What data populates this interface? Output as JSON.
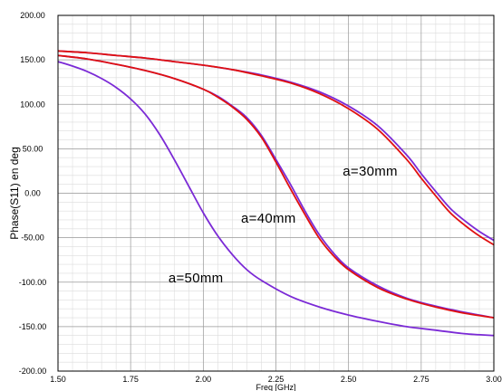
{
  "chart_data": {
    "type": "line",
    "title": "",
    "xlabel": "Freq [GHz]",
    "ylabel": "Phase(S11) en deg",
    "xlim": [
      1.5,
      3.0
    ],
    "ylim": [
      -200,
      200
    ],
    "x_ticks": [
      1.5,
      1.75,
      2.0,
      2.25,
      2.5,
      2.75,
      3.0
    ],
    "x_tick_labels": [
      "1.50",
      "1.75",
      "2.00",
      "2.25",
      "2.50",
      "2.75",
      "3.00"
    ],
    "y_ticks": [
      -200,
      -150,
      -100,
      -50,
      0,
      50,
      100,
      150,
      200
    ],
    "y_tick_labels": [
      "-200.00",
      "-150.00",
      "-100.00",
      "-50.00",
      "0.00",
      "50.00",
      "100.00",
      "150.00",
      "200.00"
    ],
    "grid": true,
    "minor_grid": true,
    "legend": "none",
    "annotations": [
      {
        "text": "a=30mm",
        "x": 2.48,
        "y": 20
      },
      {
        "text": "a=40mm",
        "x": 2.13,
        "y": -33
      },
      {
        "text": "a=50mm",
        "x": 1.88,
        "y": -100
      }
    ],
    "series": [
      {
        "color": "#7b2ad6",
        "points": [
          [
            1.5,
            160
          ],
          [
            1.6,
            158
          ],
          [
            1.7,
            155
          ],
          [
            1.8,
            152
          ],
          [
            1.9,
            148
          ],
          [
            2.0,
            144
          ],
          [
            2.1,
            139
          ],
          [
            2.2,
            133
          ],
          [
            2.3,
            125
          ],
          [
            2.4,
            114
          ],
          [
            2.5,
            98
          ],
          [
            2.6,
            76
          ],
          [
            2.7,
            43
          ],
          [
            2.75,
            22
          ],
          [
            2.8,
            2
          ],
          [
            2.85,
            -17
          ],
          [
            2.9,
            -31
          ],
          [
            2.95,
            -43
          ],
          [
            3.0,
            -53
          ]
        ]
      },
      {
        "color": "#e01010",
        "points": [
          [
            1.5,
            160
          ],
          [
            1.6,
            158
          ],
          [
            1.7,
            155
          ],
          [
            1.8,
            152
          ],
          [
            1.9,
            148
          ],
          [
            2.0,
            144
          ],
          [
            2.1,
            139
          ],
          [
            2.2,
            132
          ],
          [
            2.3,
            124
          ],
          [
            2.4,
            112
          ],
          [
            2.5,
            95
          ],
          [
            2.6,
            72
          ],
          [
            2.7,
            38
          ],
          [
            2.75,
            17
          ],
          [
            2.8,
            -3
          ],
          [
            2.85,
            -22
          ],
          [
            2.9,
            -36
          ],
          [
            2.95,
            -48
          ],
          [
            3.0,
            -58
          ]
        ]
      },
      {
        "color": "#7b2ad6",
        "points": [
          [
            1.5,
            155
          ],
          [
            1.6,
            151
          ],
          [
            1.7,
            145
          ],
          [
            1.8,
            138
          ],
          [
            1.9,
            129
          ],
          [
            2.0,
            117
          ],
          [
            2.05,
            109
          ],
          [
            2.1,
            98
          ],
          [
            2.15,
            85
          ],
          [
            2.2,
            65
          ],
          [
            2.25,
            38
          ],
          [
            2.3,
            10
          ],
          [
            2.35,
            -20
          ],
          [
            2.4,
            -47
          ],
          [
            2.45,
            -68
          ],
          [
            2.5,
            -84
          ],
          [
            2.6,
            -104
          ],
          [
            2.7,
            -118
          ],
          [
            2.8,
            -127
          ],
          [
            2.9,
            -134
          ],
          [
            3.0,
            -140
          ]
        ]
      },
      {
        "color": "#e01010",
        "points": [
          [
            1.5,
            155
          ],
          [
            1.6,
            151
          ],
          [
            1.7,
            145
          ],
          [
            1.8,
            138
          ],
          [
            1.9,
            129
          ],
          [
            2.0,
            117
          ],
          [
            2.05,
            108
          ],
          [
            2.1,
            97
          ],
          [
            2.15,
            83
          ],
          [
            2.2,
            63
          ],
          [
            2.25,
            35
          ],
          [
            2.3,
            5
          ],
          [
            2.35,
            -24
          ],
          [
            2.4,
            -51
          ],
          [
            2.45,
            -71
          ],
          [
            2.5,
            -86
          ],
          [
            2.6,
            -106
          ],
          [
            2.7,
            -119
          ],
          [
            2.8,
            -128
          ],
          [
            2.9,
            -135
          ],
          [
            3.0,
            -140
          ]
        ]
      },
      {
        "color": "#7b2ad6",
        "points": [
          [
            1.5,
            148
          ],
          [
            1.55,
            143
          ],
          [
            1.6,
            137
          ],
          [
            1.65,
            129
          ],
          [
            1.7,
            119
          ],
          [
            1.75,
            106
          ],
          [
            1.8,
            89
          ],
          [
            1.85,
            66
          ],
          [
            1.9,
            38
          ],
          [
            1.95,
            8
          ],
          [
            2.0,
            -22
          ],
          [
            2.05,
            -48
          ],
          [
            2.1,
            -69
          ],
          [
            2.15,
            -86
          ],
          [
            2.2,
            -98
          ],
          [
            2.3,
            -116
          ],
          [
            2.4,
            -128
          ],
          [
            2.5,
            -137
          ],
          [
            2.6,
            -144
          ],
          [
            2.7,
            -150
          ],
          [
            2.8,
            -154
          ],
          [
            2.9,
            -158
          ],
          [
            3.0,
            -160
          ]
        ]
      }
    ]
  }
}
